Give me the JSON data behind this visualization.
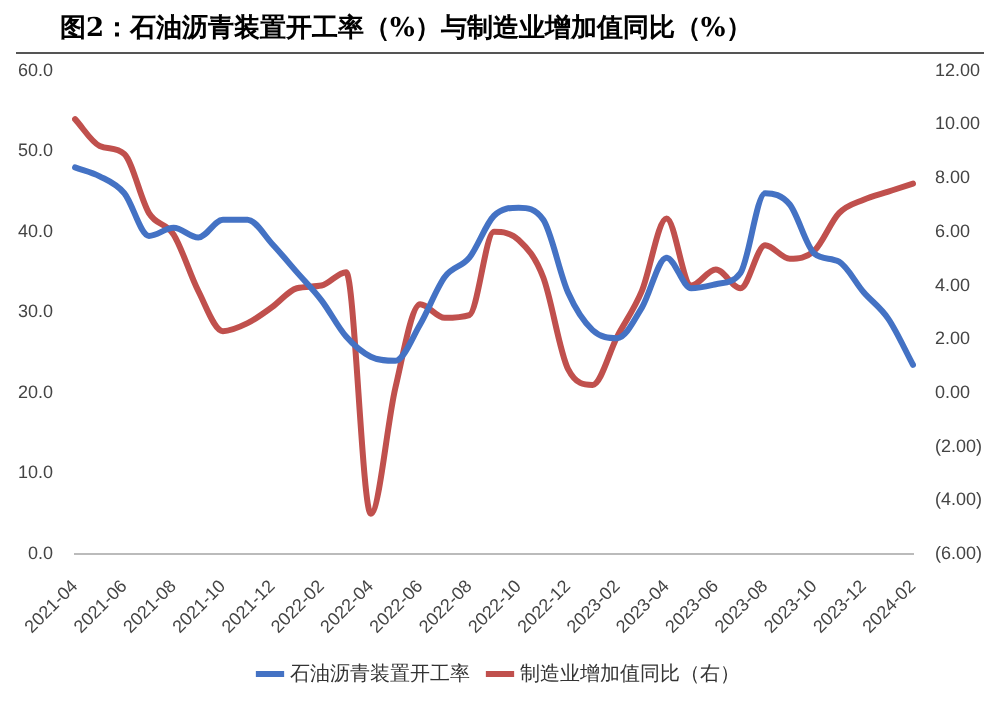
{
  "chart_data": {
    "type": "line",
    "title": "图2：石油沥青装置开工率（%）与制造业增加值同比（%）",
    "categories": [
      "2021-04",
      null,
      "2021-06",
      null,
      "2021-08",
      null,
      "2021-10",
      null,
      "2021-12",
      null,
      "2022-02",
      null,
      "2022-04",
      null,
      "2022-06",
      null,
      "2022-08",
      null,
      "2022-10",
      null,
      "2022-12",
      null,
      "2023-02",
      null,
      "2023-04",
      null,
      "2023-06",
      null,
      "2023-08",
      null,
      "2023-10",
      null,
      "2023-12",
      null,
      "2024-02"
    ],
    "series": [
      {
        "name": "石油沥青装置开工率",
        "color": "#4472c4",
        "values": [
          48.0,
          46.9,
          44.8,
          39.5,
          40.5,
          39.3,
          41.5,
          41.5,
          38.5,
          35.0,
          31.5,
          27.0,
          24.5,
          24.0,
          28.5,
          34.4,
          36.8,
          42.0,
          43.0,
          41.5,
          32.5,
          27.8,
          26.8,
          30.6,
          36.8,
          33.0,
          33.5,
          34.9,
          44.8,
          43.4,
          37.3,
          36.3,
          32.5,
          29.2,
          23.5
        ]
      },
      {
        "name": "制造业增加值同比（右）",
        "color": "#c0504d",
        "axis": "y2",
        "values": [
          10.2,
          9.2,
          8.9,
          6.7,
          5.9,
          3.8,
          2.3,
          2.6,
          3.2,
          3.9,
          4.0,
          4.5,
          -4.5,
          0.2,
          3.3,
          2.8,
          2.9,
          6.0,
          5.7,
          4.3,
          0.9,
          0.3,
          2.1,
          3.8,
          6.5,
          4.0,
          4.6,
          3.9,
          5.5,
          5.0,
          5.3,
          6.7,
          7.2,
          7.5,
          7.8
        ]
      }
    ],
    "ylim": [
      0,
      60
    ],
    "yticks": [
      {
        "value": 0,
        "label": "0.0"
      },
      {
        "value": 10,
        "label": "10.0"
      },
      {
        "value": 20,
        "label": "20.0"
      },
      {
        "value": 30,
        "label": "30.0"
      },
      {
        "value": 40,
        "label": "40.0"
      },
      {
        "value": 50,
        "label": "50.0"
      },
      {
        "value": 60,
        "label": "60.0"
      }
    ],
    "y2lim": [
      -6,
      12
    ],
    "y2ticks": [
      {
        "value": -6,
        "label": "(6.00)"
      },
      {
        "value": -4,
        "label": "(4.00)"
      },
      {
        "value": -2,
        "label": "(2.00)"
      },
      {
        "value": 0,
        "label": "0.00"
      },
      {
        "value": 2,
        "label": "2.00"
      },
      {
        "value": 4,
        "label": "4.00"
      },
      {
        "value": 6,
        "label": "6.00"
      },
      {
        "value": 8,
        "label": "8.00"
      },
      {
        "value": 10,
        "label": "10.00"
      },
      {
        "value": 12,
        "label": "12.00"
      }
    ],
    "grid": false,
    "legend": "bottom",
    "marker": "none",
    "line_style": "solid"
  }
}
